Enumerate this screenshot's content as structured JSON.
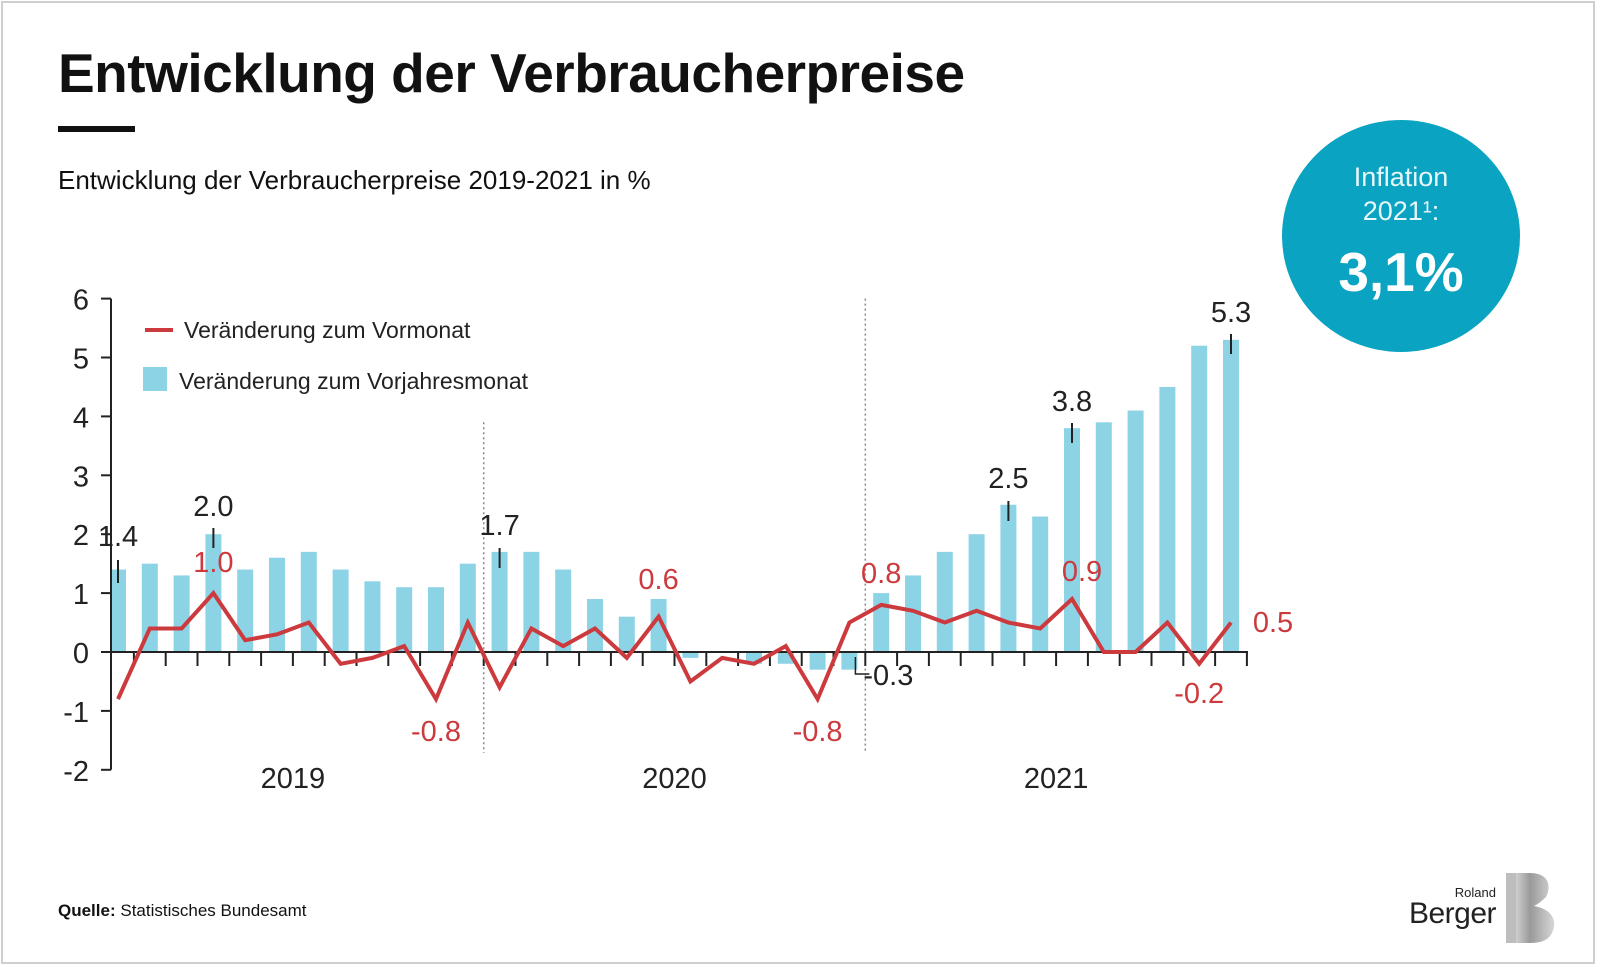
{
  "title": "Entwicklung der Verbraucherpreise",
  "subtitle": "Entwicklung der Verbraucherpreise 2019-2021 in %",
  "badge": {
    "line1": "Inflation",
    "line2": "2021¹:",
    "value": "3,1%",
    "color": "#0aa3c2"
  },
  "source": {
    "label": "Quelle:",
    "text": "Statistisches Bundesamt"
  },
  "logo": {
    "roland": "Roland",
    "berger": "Berger"
  },
  "chart_data": {
    "type": "bar",
    "ylim": [
      -2,
      6
    ],
    "yticks": [
      "-2",
      "-1",
      "0",
      "1",
      "2",
      "3",
      "4",
      "5",
      "6"
    ],
    "years": [
      "2019",
      "2020",
      "2021"
    ],
    "legend": {
      "line": "Veränderung zum Vormonat",
      "bar": "Veränderung zum Vorjahresmonat",
      "placement": "top-left"
    },
    "colors": {
      "bar": "#8dd3e6",
      "line": "#cc3a3e",
      "label_line": "#cc3a3e",
      "label_bar": "#222222"
    },
    "series": [
      {
        "name": "Veränderung zum Vorjahresmonat",
        "type": "bar",
        "values": [
          1.4,
          1.5,
          1.3,
          2.0,
          1.4,
          1.6,
          1.7,
          1.4,
          1.2,
          1.1,
          1.1,
          1.5,
          1.7,
          1.7,
          1.4,
          0.9,
          0.6,
          0.9,
          -0.1,
          0.0,
          -0.2,
          -0.2,
          -0.3,
          -0.3,
          1.0,
          1.3,
          1.7,
          2.0,
          2.5,
          2.3,
          3.8,
          3.9,
          4.1,
          4.5,
          5.2,
          5.3
        ]
      },
      {
        "name": "Veränderung zum Vormonat",
        "type": "line",
        "values": [
          -0.8,
          0.4,
          0.4,
          1.0,
          0.2,
          0.3,
          0.5,
          -0.2,
          -0.1,
          0.1,
          -0.8,
          0.5,
          -0.6,
          0.4,
          0.1,
          0.4,
          -0.1,
          0.6,
          -0.5,
          -0.1,
          -0.2,
          0.1,
          -0.8,
          0.5,
          0.8,
          0.7,
          0.5,
          0.7,
          0.5,
          0.4,
          0.9,
          0.0,
          0.0,
          0.5,
          -0.2,
          0.5
        ]
      }
    ],
    "bar_labels": [
      {
        "i": 0,
        "text": "1.4"
      },
      {
        "i": 3,
        "text": "2.0"
      },
      {
        "i": 12,
        "text": "1.7"
      },
      {
        "i": 23,
        "text": "-0.3"
      },
      {
        "i": 28,
        "text": "2.5"
      },
      {
        "i": 30,
        "text": "3.8"
      },
      {
        "i": 35,
        "text": "5.3"
      }
    ],
    "line_labels": [
      {
        "i": 3,
        "text": "1.0"
      },
      {
        "i": 10,
        "text": "-0.8"
      },
      {
        "i": 17,
        "text": "0.6"
      },
      {
        "i": 22,
        "text": "-0.8"
      },
      {
        "i": 24,
        "text": "0.8"
      },
      {
        "i": 30,
        "text": "0.9"
      },
      {
        "i": 34,
        "text": "-0.2"
      },
      {
        "i": 35,
        "text": "0.5"
      }
    ]
  }
}
